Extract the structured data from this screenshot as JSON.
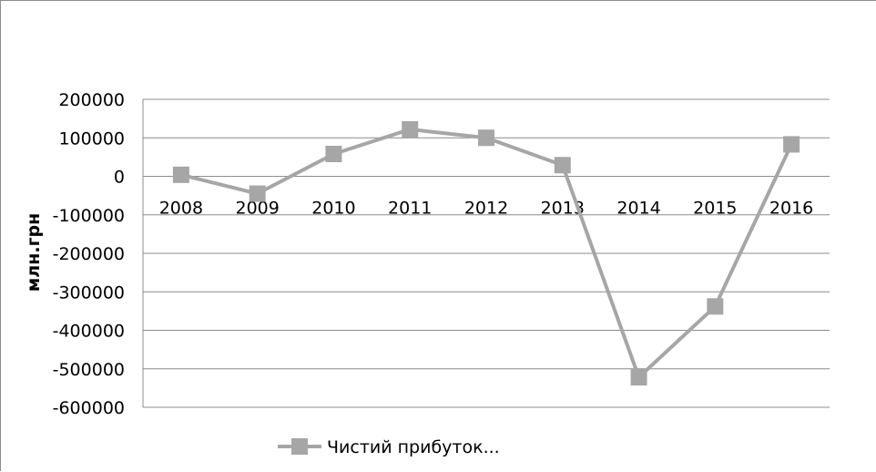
{
  "chart_data": {
    "type": "line",
    "x": [
      "2008",
      "2009",
      "2010",
      "2011",
      "2012",
      "2013",
      "2014",
      "2015",
      "2016"
    ],
    "series": [
      {
        "name": "Чистий прибуток...",
        "values": [
          4000,
          -45000,
          58000,
          122000,
          100000,
          29000,
          -522000,
          -338000,
          83000
        ]
      }
    ],
    "ylabel": "млн.грн",
    "ylim": [
      -600000,
      200000
    ],
    "yticks": [
      "200000",
      "100000",
      "0",
      "-100000",
      "-200000",
      "-300000",
      "-400000",
      "-500000",
      "-600000"
    ],
    "grid": true,
    "legend": "bottom",
    "colors": {
      "series": "#a6a6a6",
      "grid": "#8c8c8c"
    }
  }
}
